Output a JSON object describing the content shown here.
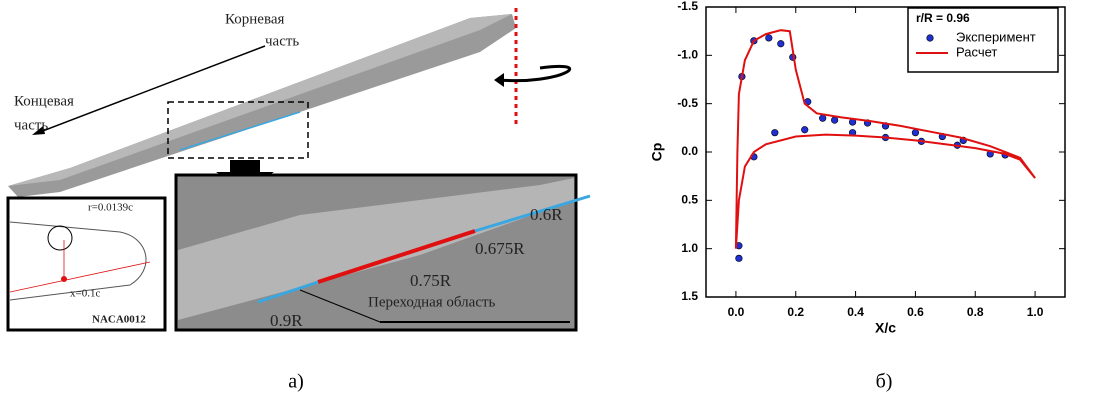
{
  "figure_a": {
    "labels": [
      "Корневая",
      "часть",
      "Концевая",
      "часть",
      "r=0.0139c",
      "x=0.1c",
      "NACA0012",
      "0.6R",
      "0.675R",
      "0.75R",
      "0.9R",
      "Переходная область"
    ]
  },
  "captions": [
    "а)",
    "б)"
  ],
  "chart_data": {
    "type": "line",
    "xlabel": "X/c",
    "ylabel": "Cp",
    "legend_title": "r/R = 0.96",
    "legend": "upper right",
    "xlim": [
      -0.1,
      1.1
    ],
    "ylim": [
      1.5,
      -1.5
    ],
    "xticks": [
      {
        "value": 0,
        "label": "0.0"
      },
      0.2,
      0.4,
      0.6,
      0.8,
      {
        "value": 1,
        "label": "1.0"
      }
    ],
    "yticks": [
      -1.5,
      {
        "value": -1,
        "label": "-1.0"
      },
      -0.5,
      {
        "value": 0,
        "label": "0.0"
      },
      0.5,
      {
        "value": 1,
        "label": "1.0"
      },
      1.5
    ],
    "series": [
      {
        "name": "Эксперимент",
        "type": "scatter",
        "color": "#1f2fd0",
        "x": [
          0.02,
          0.06,
          0.11,
          0.15,
          0.19,
          0.24,
          0.29,
          0.33,
          0.39,
          0.44,
          0.5,
          0.6,
          0.69,
          0.76,
          0.01,
          0.01,
          0.06,
          0.13,
          0.23,
          0.39,
          0.5,
          0.62,
          0.74,
          0.85,
          0.9
        ],
        "values": [
          -0.78,
          -1.15,
          -1.18,
          -1.12,
          -0.98,
          -0.52,
          -0.35,
          -0.33,
          -0.31,
          -0.3,
          -0.27,
          -0.2,
          -0.16,
          -0.12,
          0.97,
          1.1,
          0.05,
          -0.2,
          -0.23,
          -0.2,
          -0.15,
          -0.11,
          -0.07,
          0.02,
          0.03
        ]
      },
      {
        "name": "Расчет",
        "type": "line",
        "color": "#e01010",
        "x": [
          0.0,
          0.005,
          0.01,
          0.03,
          0.06,
          0.1,
          0.15,
          0.18,
          0.2,
          0.23,
          0.27,
          0.35,
          0.45,
          0.55,
          0.65,
          0.75,
          0.85,
          0.95,
          1.0,
          null,
          0.0,
          0.01,
          0.03,
          0.06,
          0.1,
          0.2,
          0.3,
          0.4,
          0.5,
          0.6,
          0.7,
          0.8,
          0.9,
          0.95,
          1.0
        ],
        "values": [
          1.0,
          0.0,
          -0.6,
          -0.95,
          -1.15,
          -1.22,
          -1.26,
          -1.25,
          -0.85,
          -0.5,
          -0.4,
          -0.36,
          -0.32,
          -0.27,
          -0.21,
          -0.15,
          -0.06,
          0.06,
          0.27,
          null,
          1.0,
          0.5,
          0.15,
          0.0,
          -0.08,
          -0.16,
          -0.18,
          -0.17,
          -0.15,
          -0.12,
          -0.08,
          -0.04,
          0.02,
          0.08,
          0.27
        ]
      }
    ]
  }
}
